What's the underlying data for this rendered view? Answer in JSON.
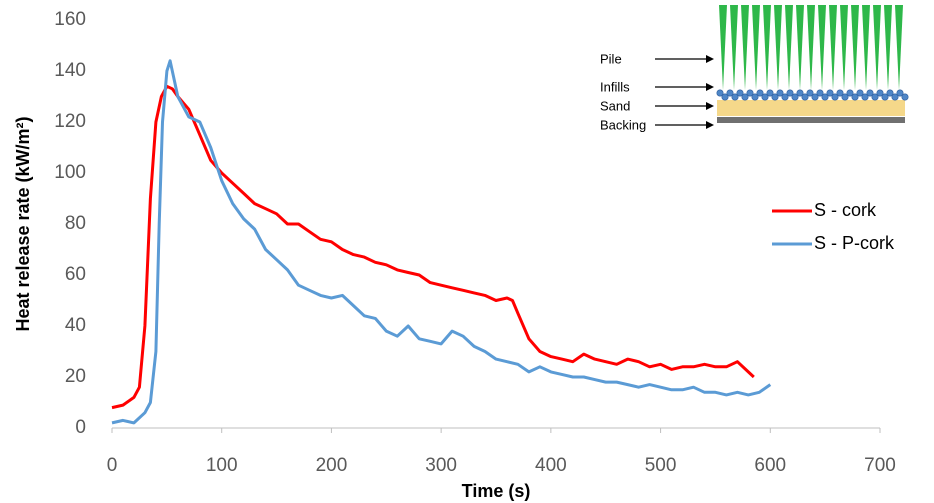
{
  "chart_data": {
    "type": "line",
    "x_label": "Time (s)",
    "y_label": "Heat release rate (kW/m²)",
    "xlim": [
      0,
      700
    ],
    "xticks": [
      0,
      100,
      200,
      300,
      400,
      500,
      600,
      700
    ],
    "ylim": [
      0,
      160
    ],
    "yticks": [
      0,
      20,
      40,
      60,
      80,
      100,
      120,
      140,
      160
    ],
    "grid": false,
    "legend": "right",
    "inset_labels": [
      "Pile",
      "Infills",
      "Sand",
      "Backing"
    ],
    "series": [
      {
        "name": "S - cork",
        "color": "#ff0000",
        "x": [
          0,
          10,
          20,
          25,
          30,
          35,
          40,
          45,
          50,
          55,
          60,
          70,
          80,
          90,
          100,
          110,
          120,
          130,
          140,
          150,
          160,
          170,
          180,
          190,
          200,
          210,
          220,
          230,
          240,
          250,
          260,
          270,
          280,
          290,
          300,
          310,
          320,
          330,
          340,
          350,
          360,
          365,
          370,
          380,
          390,
          400,
          410,
          420,
          430,
          440,
          450,
          460,
          470,
          480,
          490,
          500,
          510,
          520,
          530,
          540,
          550,
          560,
          570,
          580,
          585
        ],
        "values": [
          8,
          9,
          12,
          16,
          40,
          90,
          120,
          130,
          134,
          133,
          130,
          125,
          115,
          105,
          100,
          96,
          92,
          88,
          86,
          84,
          80,
          80,
          77,
          74,
          73,
          70,
          68,
          67,
          65,
          64,
          62,
          61,
          60,
          57,
          56,
          55,
          54,
          53,
          52,
          50,
          51,
          50,
          45,
          35,
          30,
          28,
          27,
          26,
          29,
          27,
          26,
          25,
          27,
          26,
          24,
          25,
          23,
          24,
          24,
          25,
          24,
          24,
          26,
          22,
          20
        ]
      },
      {
        "name": "S - P-cork",
        "color": "#5b9bd5",
        "x": [
          0,
          10,
          20,
          30,
          35,
          40,
          43,
          46,
          50,
          53,
          56,
          60,
          70,
          80,
          90,
          100,
          110,
          120,
          130,
          140,
          150,
          160,
          170,
          180,
          190,
          200,
          210,
          220,
          230,
          240,
          250,
          260,
          270,
          280,
          290,
          300,
          310,
          320,
          330,
          340,
          350,
          360,
          370,
          380,
          390,
          400,
          410,
          420,
          430,
          440,
          450,
          460,
          470,
          480,
          490,
          500,
          510,
          520,
          530,
          540,
          550,
          560,
          570,
          580,
          590,
          600
        ],
        "values": [
          2,
          3,
          2,
          6,
          10,
          30,
          80,
          120,
          140,
          144,
          138,
          130,
          122,
          120,
          110,
          97,
          88,
          82,
          78,
          70,
          66,
          62,
          56,
          54,
          52,
          51,
          52,
          48,
          44,
          43,
          38,
          36,
          40,
          35,
          34,
          33,
          38,
          36,
          32,
          30,
          27,
          26,
          25,
          22,
          24,
          22,
          21,
          20,
          20,
          19,
          18,
          18,
          17,
          16,
          17,
          16,
          15,
          15,
          16,
          14,
          14,
          13,
          14,
          13,
          14,
          17
        ]
      }
    ]
  }
}
